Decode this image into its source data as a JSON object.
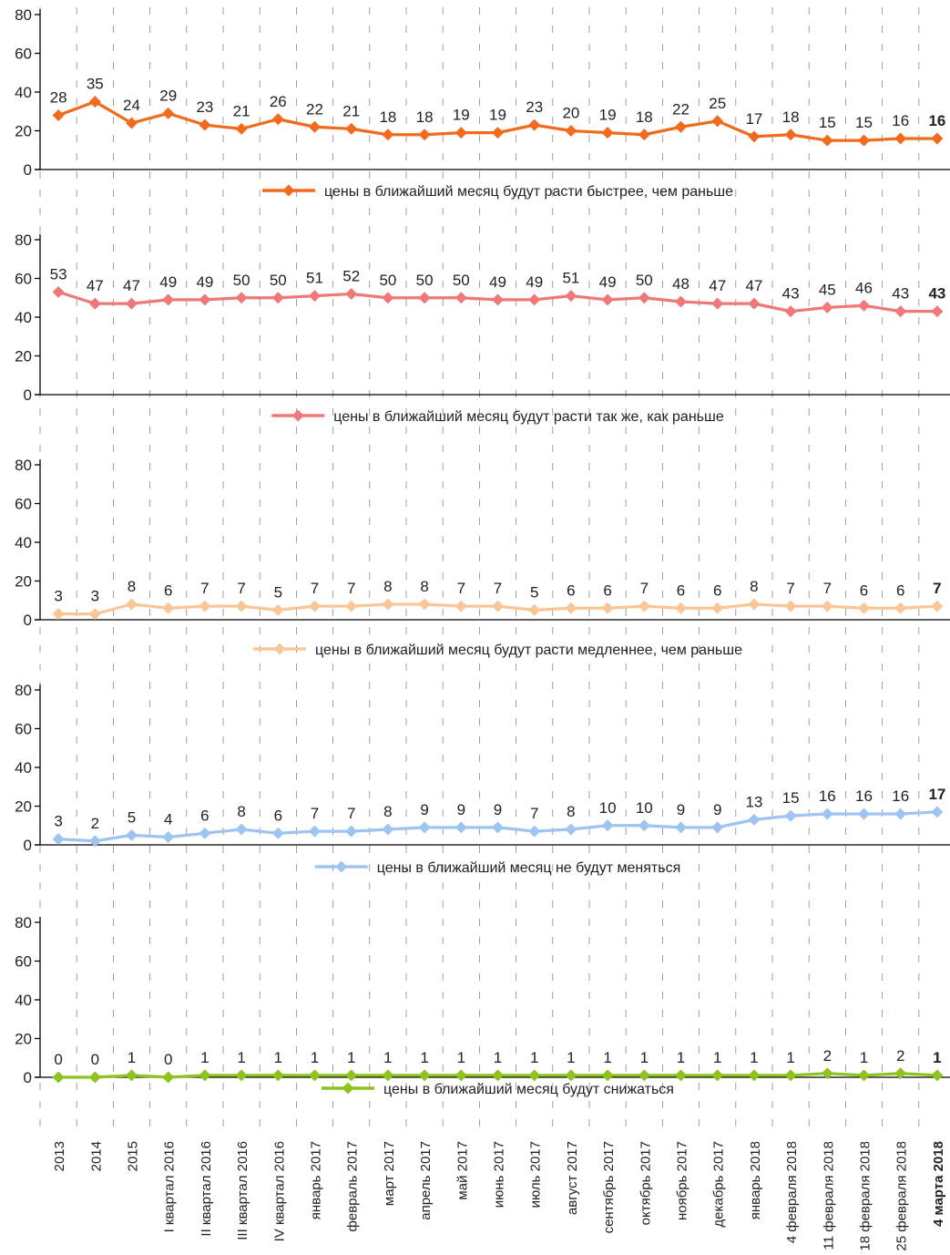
{
  "chart_data": {
    "type": "line",
    "y_ticks": [
      0,
      20,
      40,
      60,
      80
    ],
    "ylim": [
      0,
      80
    ],
    "grid": "dashed vertical separators between categories",
    "categories": [
      "2013",
      "2014",
      "2015",
      "I квартал 2016",
      "II квартал 2016",
      "III квартал 2016",
      "IV квартал 2016",
      "январь 2017",
      "февраль 2017",
      "март 2017",
      "апрель 2017",
      "май 2017",
      "июнь 2017",
      "июль 2017",
      "август 2017",
      "сентябрь 2017",
      "октябрь 2017",
      "ноябрь 2017",
      "декабрь 2017",
      "январь 2018",
      "4 февраля 2018",
      "11 февраля 2018",
      "18 февраля 2018",
      "25 февраля 2018",
      "4 марта 2018"
    ],
    "last_category_bold": true,
    "series": [
      {
        "name": "цены в ближайший месяц будут расти быстрее, чем раньше",
        "color": "#f26a1b",
        "values": [
          28,
          35,
          24,
          29,
          23,
          21,
          26,
          22,
          21,
          18,
          18,
          19,
          19,
          23,
          20,
          19,
          18,
          22,
          25,
          17,
          18,
          15,
          15,
          16,
          16
        ]
      },
      {
        "name": "цены в ближайший месяц будут расти так же, как раньше",
        "color": "#f07878",
        "values": [
          53,
          47,
          47,
          49,
          49,
          50,
          50,
          51,
          52,
          50,
          50,
          50,
          49,
          49,
          51,
          49,
          50,
          48,
          47,
          47,
          43,
          45,
          46,
          43,
          43
        ]
      },
      {
        "name": "цены в ближайший месяц будут расти медленнее, чем раньше",
        "color": "#f9c797",
        "values": [
          3,
          3,
          8,
          6,
          7,
          7,
          5,
          7,
          7,
          8,
          8,
          7,
          7,
          5,
          6,
          6,
          7,
          6,
          6,
          8,
          7,
          7,
          6,
          6,
          7
        ]
      },
      {
        "name": "цены в ближайший месяц не будут меняться",
        "color": "#9dc5f0",
        "values": [
          3,
          2,
          5,
          4,
          6,
          8,
          6,
          7,
          7,
          8,
          9,
          9,
          9,
          7,
          8,
          10,
          10,
          9,
          9,
          13,
          15,
          16,
          16,
          16,
          17
        ]
      },
      {
        "name": "цены в ближайший месяц будут снижаться",
        "color": "#8fc31f",
        "values": [
          0,
          0,
          1,
          0,
          1,
          1,
          1,
          1,
          1,
          1,
          1,
          1,
          1,
          1,
          1,
          1,
          1,
          1,
          1,
          1,
          1,
          2,
          1,
          2,
          1
        ]
      }
    ]
  }
}
